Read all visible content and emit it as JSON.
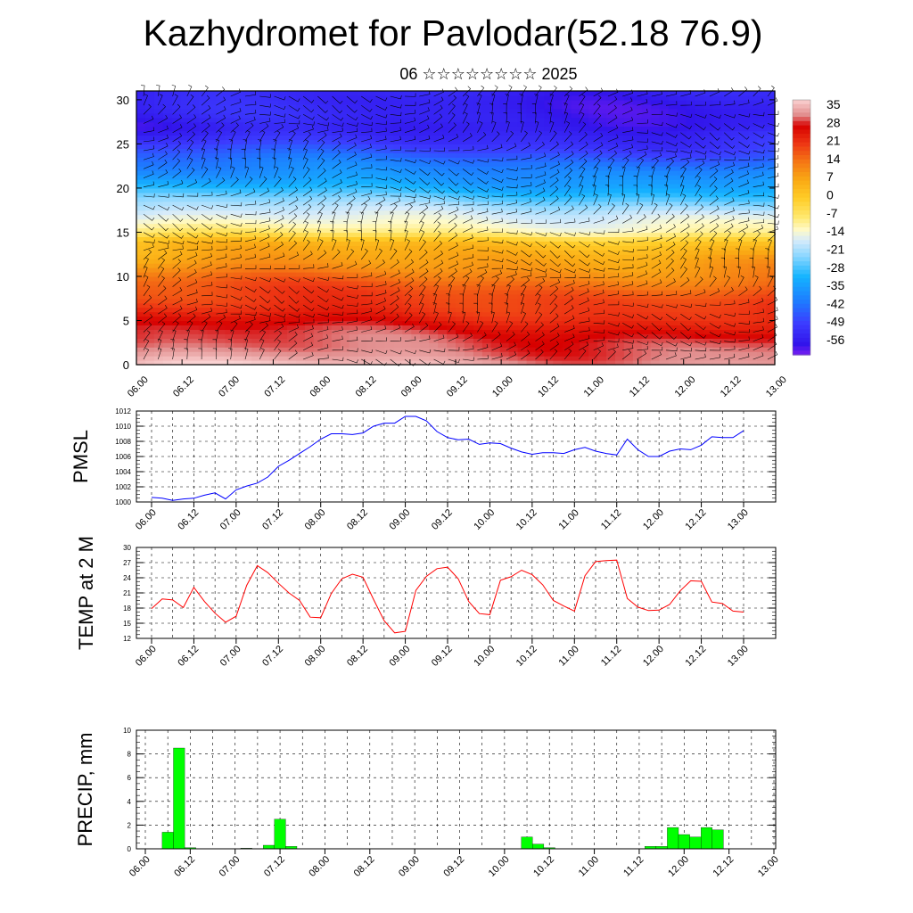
{
  "page": {
    "title": "Kazhydromet for Pavlodar(52.18 76.9)",
    "subtitle": "06 ☆☆☆☆☆☆☆☆ 2025"
  },
  "chart_data": [
    {
      "id": "cross-section",
      "type": "heatmap",
      "x_tick_labels": [
        "06.00",
        "06.12",
        "07.00",
        "07.12",
        "08.00",
        "08.12",
        "09.00",
        "09.12",
        "10.00",
        "10.12",
        "11.00",
        "11.12",
        "12.00",
        "12.12",
        "13.00"
      ],
      "y_tick_labels": [
        "0",
        "5",
        "10",
        "15",
        "20",
        "25",
        "30"
      ],
      "ylim": [
        0,
        31
      ],
      "xlabel": "",
      "ylabel": "",
      "colorbar_labels": [
        "35",
        "28",
        "21",
        "14",
        "7",
        "0",
        "-7",
        "-14",
        "-21",
        "-28",
        "-35",
        "-42",
        "-49",
        "-56"
      ],
      "colorbar_range": [
        -60,
        38
      ],
      "profile_levels": [
        0,
        5,
        10,
        14,
        15,
        17,
        20,
        24,
        27,
        31
      ],
      "profile_values": [
        35,
        25,
        14,
        2,
        -8,
        -16,
        -30,
        -45,
        -55,
        -52
      ],
      "overlay": "wind barbs"
    },
    {
      "id": "pmsl",
      "type": "line",
      "ylabel": "PMSL",
      "xlabel": "",
      "color": "#0000ff",
      "ylim": [
        1000,
        1012
      ],
      "y_ticks": [
        "1000",
        "1002",
        "1004",
        "1006",
        "1008",
        "1010",
        "1012"
      ],
      "x_tick_labels": [
        "06.00",
        "06.12",
        "07.00",
        "07.12",
        "08.00",
        "08.12",
        "09.00",
        "09.12",
        "10.00",
        "10.12",
        "11.00",
        "11.12",
        "12.00",
        "12.12",
        "13.00"
      ],
      "step_hours": 3,
      "values": [
        1000.6,
        1000.5,
        1000.2,
        1000.4,
        1000.5,
        1000.9,
        1001.2,
        1000.4,
        1001.6,
        1002.1,
        1002.5,
        1003.3,
        1004.7,
        1005.5,
        1006.4,
        1007.3,
        1008.3,
        1009.0,
        1009.0,
        1008.9,
        1009.1,
        1010.0,
        1010.4,
        1010.4,
        1011.3,
        1011.3,
        1010.7,
        1009.3,
        1008.5,
        1008.2,
        1008.3,
        1007.6,
        1007.8,
        1007.7,
        1007.1,
        1006.6,
        1006.3,
        1006.5,
        1006.5,
        1006.4,
        1006.9,
        1007.2,
        1006.7,
        1006.4,
        1006.2,
        1008.3,
        1006.9,
        1006.0,
        1006.0,
        1006.7,
        1007.0,
        1006.9,
        1007.5,
        1008.6,
        1008.5,
        1008.5,
        1009.4
      ]
    },
    {
      "id": "temp",
      "type": "line",
      "ylabel": "TEMP at 2 M",
      "xlabel": "",
      "color": "#ff0000",
      "ylim": [
        12,
        30
      ],
      "y_ticks": [
        "12",
        "15",
        "18",
        "21",
        "24",
        "27",
        "30"
      ],
      "x_tick_labels": [
        "06.00",
        "06.12",
        "07.00",
        "07.12",
        "08.00",
        "08.12",
        "09.00",
        "09.12",
        "10.00",
        "10.12",
        "11.00",
        "11.12",
        "12.00",
        "12.12",
        "13.00"
      ],
      "step_hours": 3,
      "values": [
        17.9,
        19.8,
        19.6,
        18.1,
        22.1,
        19.3,
        17.0,
        15.2,
        16.4,
        22.5,
        26.4,
        25.0,
        22.9,
        21.0,
        19.5,
        16.2,
        16.1,
        20.9,
        23.8,
        24.7,
        24.1,
        19.7,
        15.5,
        13.1,
        13.4,
        21.5,
        24.3,
        25.8,
        26.1,
        23.8,
        19.3,
        16.9,
        16.7,
        23.5,
        24.2,
        25.5,
        24.6,
        22.6,
        19.5,
        18.4,
        17.4,
        24.4,
        27.2,
        27.4,
        27.5,
        19.9,
        18.2,
        17.5,
        17.6,
        18.7,
        21.4,
        23.4,
        23.3,
        19.2,
        18.9,
        17.4,
        17.2
      ]
    },
    {
      "id": "precip",
      "type": "bar",
      "ylabel": "PRECIP, mm",
      "xlabel": "",
      "color": "#00ff00",
      "ylim": [
        0,
        10
      ],
      "y_ticks": [
        "0",
        "2",
        "4",
        "6",
        "8",
        "10"
      ],
      "x_tick_labels": [
        "06.00",
        "06.12",
        "07.00",
        "07.12",
        "08.00",
        "08.12",
        "09.00",
        "09.12",
        "10.00",
        "10.12",
        "11.00",
        "11.12",
        "12.00",
        "12.12",
        "13.00"
      ],
      "step_hours": 3,
      "values": [
        0,
        0,
        1.4,
        8.5,
        0.1,
        0,
        0,
        0,
        0,
        0.05,
        0,
        0.3,
        2.5,
        0.2,
        0,
        0,
        0,
        0,
        0,
        0,
        0,
        0,
        0,
        0,
        0,
        0,
        0,
        0,
        0,
        0,
        0,
        0,
        0,
        0,
        1.0,
        0.4,
        0.1,
        0,
        0,
        0,
        0,
        0,
        0,
        0,
        0,
        0.2,
        0.2,
        1.8,
        1.2,
        1.0,
        1.8,
        1.6,
        0,
        0,
        0,
        0
      ]
    }
  ]
}
